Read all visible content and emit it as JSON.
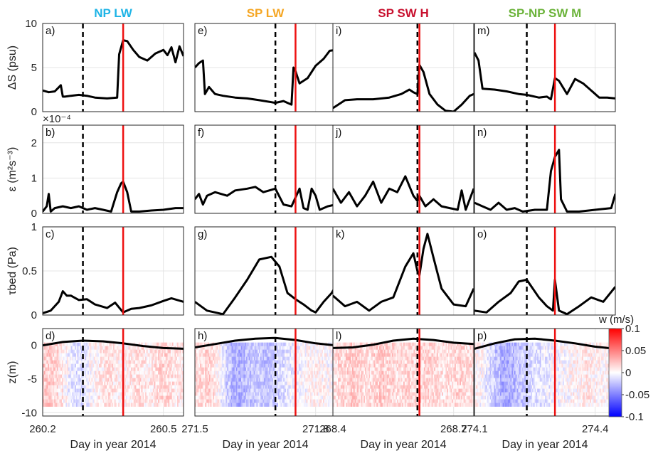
{
  "chart_data": {
    "type": "line",
    "title": "",
    "columns": [
      {
        "title": "NP LW",
        "title_color": "#1EB4E6",
        "x_ticks": [
          "260.2",
          "260.5"
        ],
        "xlim": [
          260.2,
          260.55
        ],
        "x_dashed": 260.3,
        "x_red": 260.4
      },
      {
        "title": "SP LW",
        "title_color": "#F5A623",
        "x_ticks": [
          "271.5",
          "271.8"
        ],
        "xlim": [
          271.5,
          271.85
        ],
        "x_dashed": 271.7,
        "x_red": 271.75
      },
      {
        "title": "SP SW H",
        "title_color": "#C8102E",
        "x_ticks": [
          "268.4",
          "268.7"
        ],
        "xlim": [
          268.4,
          268.75
        ],
        "x_dashed": 268.61,
        "x_red": 268.615
      },
      {
        "title": "SP-NP SW M",
        "title_color": "#6BB33A",
        "x_ticks": [
          "274.1",
          "274.4"
        ],
        "xlim": [
          274.1,
          274.45
        ],
        "x_dashed": 274.23,
        "x_red": 274.3
      }
    ],
    "rows": [
      {
        "ylabel": "ΔS (psu)",
        "ylim": [
          0,
          10
        ],
        "yticks": [
          "0",
          "5",
          "10"
        ],
        "tick_values": [
          0,
          5,
          10
        ],
        "exponent_label": ""
      },
      {
        "ylabel": "ε (m²s⁻³)",
        "ylim": [
          0,
          2.5
        ],
        "yticks": [
          "0",
          "1",
          "2"
        ],
        "tick_values": [
          0,
          1,
          2
        ],
        "exponent_label": "×10⁻⁴"
      },
      {
        "ylabel": "τbed (Pa)",
        "ylim": [
          0,
          1
        ],
        "yticks": [
          "0",
          "0.5",
          "1"
        ],
        "tick_values": [
          0,
          0.5,
          1
        ],
        "exponent_label": ""
      },
      {
        "ylabel": "z(m)",
        "ylim": [
          -10.5,
          2.5
        ],
        "yticks": [
          "0",
          "-5",
          "-10"
        ],
        "tick_values": [
          0,
          -5,
          -10
        ],
        "exponent_label": ""
      }
    ],
    "panel_labels": [
      "a)",
      "b)",
      "c)",
      "d)",
      "e)",
      "f)",
      "g)",
      "h)",
      "i)",
      "j)",
      "k)",
      "l)",
      "m)",
      "n)",
      "o)",
      "p)"
    ],
    "xlabel": "Day in year 2014",
    "colorbar": {
      "label": "w (m/s)",
      "ticks": [
        "0.1",
        "0.05",
        "0",
        "-0.05",
        "-0.1"
      ],
      "tick_values": [
        0.1,
        0.05,
        0,
        -0.05,
        -0.1
      ],
      "range": [
        -0.1,
        0.1
      ]
    },
    "series": {
      "salinity": [
        {
          "x": [
            260.2,
            260.215,
            260.23,
            260.245,
            260.25,
            260.255,
            260.27,
            260.29,
            260.31,
            260.33,
            260.36,
            260.385,
            260.39,
            260.4,
            260.41,
            260.425,
            260.44,
            260.46,
            260.48,
            260.5,
            260.51,
            260.52,
            260.53,
            260.54,
            260.55
          ],
          "y": [
            2.4,
            2.2,
            2.3,
            3.0,
            1.7,
            1.7,
            1.8,
            1.9,
            1.8,
            1.6,
            1.5,
            1.6,
            6.5,
            8.1,
            8.0,
            7.0,
            6.2,
            5.8,
            6.6,
            7.0,
            6.4,
            7.3,
            5.6,
            7.4,
            6.3
          ]
        },
        {
          "x": [
            271.5,
            271.51,
            271.52,
            271.525,
            271.535,
            271.55,
            271.57,
            271.6,
            271.63,
            271.66,
            271.7,
            271.72,
            271.74,
            271.745,
            271.75,
            271.76,
            271.78,
            271.8,
            271.82,
            271.835,
            271.85
          ],
          "y": [
            5.0,
            5.5,
            5.8,
            2.0,
            2.8,
            2.0,
            1.8,
            1.6,
            1.5,
            1.3,
            1.0,
            1.2,
            0.8,
            5.0,
            4.6,
            3.2,
            3.8,
            5.2,
            6.0,
            6.9,
            7.0
          ]
        },
        {
          "x": [
            268.4,
            268.43,
            268.46,
            268.5,
            268.54,
            268.57,
            268.59,
            268.6,
            268.61,
            268.615,
            268.625,
            268.64,
            268.66,
            268.68,
            268.7,
            268.72,
            268.74,
            268.75
          ],
          "y": [
            0.4,
            1.3,
            1.4,
            1.4,
            1.6,
            2.0,
            2.5,
            2.2,
            2.0,
            5.3,
            4.5,
            2.0,
            0.8,
            0.1,
            0.0,
            0.8,
            1.8,
            2.0
          ]
        },
        {
          "x": [
            274.1,
            274.11,
            274.12,
            274.15,
            274.18,
            274.21,
            274.23,
            274.26,
            274.28,
            274.29,
            274.3,
            274.31,
            274.33,
            274.35,
            274.37,
            274.39,
            274.41,
            274.43,
            274.45
          ],
          "y": [
            6.7,
            5.8,
            2.6,
            2.5,
            2.3,
            2.0,
            1.9,
            1.6,
            1.7,
            1.4,
            3.8,
            3.5,
            2.0,
            3.7,
            3.2,
            2.4,
            1.6,
            1.6,
            1.5
          ]
        }
      ],
      "epsilon": [
        {
          "x": [
            260.2,
            260.21,
            260.215,
            260.22,
            260.23,
            260.25,
            260.27,
            260.29,
            260.31,
            260.33,
            260.35,
            260.37,
            260.385,
            260.395,
            260.4,
            260.41,
            260.42,
            260.44,
            260.47,
            260.5,
            260.53,
            260.55
          ],
          "y": [
            0.05,
            0.2,
            0.55,
            0.05,
            0.15,
            0.2,
            0.15,
            0.2,
            0.1,
            0.15,
            0.1,
            0.05,
            0.6,
            0.85,
            0.9,
            0.6,
            0.05,
            0.05,
            0.08,
            0.1,
            0.15,
            0.15
          ]
        },
        {
          "x": [
            271.5,
            271.51,
            271.52,
            271.53,
            271.55,
            271.58,
            271.6,
            271.63,
            271.65,
            271.67,
            271.7,
            271.72,
            271.74,
            271.76,
            271.77,
            271.78,
            271.79,
            271.8,
            271.81,
            271.83,
            271.85
          ],
          "y": [
            0.4,
            0.55,
            0.25,
            0.5,
            0.6,
            0.5,
            0.65,
            0.7,
            0.75,
            0.6,
            0.7,
            0.25,
            0.2,
            0.7,
            0.15,
            0.1,
            0.7,
            0.5,
            0.1,
            0.2,
            0.25
          ]
        },
        {
          "x": [
            268.4,
            268.42,
            268.44,
            268.46,
            268.48,
            268.5,
            268.52,
            268.54,
            268.56,
            268.58,
            268.6,
            268.61,
            268.615,
            268.63,
            268.65,
            268.67,
            268.69,
            268.71,
            268.72,
            268.73,
            268.75
          ],
          "y": [
            0.7,
            0.3,
            0.6,
            0.2,
            0.5,
            0.9,
            0.3,
            0.7,
            0.6,
            1.05,
            0.5,
            0.35,
            0.5,
            0.2,
            0.4,
            0.2,
            0.15,
            0.1,
            0.65,
            0.1,
            0.7
          ]
        },
        {
          "x": [
            274.1,
            274.12,
            274.14,
            274.16,
            274.18,
            274.2,
            274.22,
            274.25,
            274.28,
            274.29,
            274.3,
            274.31,
            274.315,
            274.33,
            274.36,
            274.4,
            274.44,
            274.45
          ],
          "y": [
            0.3,
            0.2,
            0.1,
            0.3,
            0.1,
            0.15,
            0.05,
            0.1,
            0.1,
            1.2,
            1.6,
            1.8,
            0.4,
            0.05,
            0.05,
            0.1,
            0.15,
            0.55
          ]
        }
      ],
      "tau": [
        {
          "x": [
            260.2,
            260.22,
            260.24,
            260.25,
            260.26,
            260.27,
            260.29,
            260.31,
            260.33,
            260.36,
            260.38,
            260.4,
            260.42,
            260.44,
            260.47,
            260.5,
            260.52,
            260.55
          ],
          "y": [
            0.02,
            0.05,
            0.15,
            0.27,
            0.22,
            0.22,
            0.17,
            0.18,
            0.12,
            0.08,
            0.14,
            0.03,
            0.07,
            0.08,
            0.11,
            0.16,
            0.19,
            0.15
          ]
        },
        {
          "x": [
            271.5,
            271.53,
            271.57,
            271.6,
            271.63,
            271.66,
            271.69,
            271.71,
            271.73,
            271.75,
            271.77,
            271.79,
            271.8,
            271.82,
            271.84,
            271.85
          ],
          "y": [
            0.15,
            0.05,
            0.01,
            0.2,
            0.4,
            0.63,
            0.66,
            0.55,
            0.25,
            0.18,
            0.12,
            0.05,
            0.03,
            0.15,
            0.25,
            0.33
          ]
        },
        {
          "x": [
            268.4,
            268.43,
            268.46,
            268.49,
            268.52,
            268.55,
            268.58,
            268.6,
            268.61,
            268.615,
            268.625,
            268.635,
            268.65,
            268.67,
            268.7,
            268.73,
            268.75
          ],
          "y": [
            0.22,
            0.1,
            0.15,
            0.05,
            0.15,
            0.2,
            0.55,
            0.7,
            0.5,
            0.45,
            0.75,
            0.92,
            0.65,
            0.3,
            0.12,
            0.1,
            0.3
          ]
        },
        {
          "x": [
            274.1,
            274.13,
            274.16,
            274.19,
            274.21,
            274.23,
            274.26,
            274.28,
            274.295,
            274.3,
            274.31,
            274.33,
            274.36,
            274.39,
            274.42,
            274.45
          ],
          "y": [
            0.05,
            0.03,
            0.15,
            0.25,
            0.38,
            0.4,
            0.2,
            0.1,
            0.05,
            0.4,
            0.05,
            0.01,
            0.1,
            0.2,
            0.15,
            0.32
          ]
        }
      ],
      "surface": [
        {
          "x": [
            260.2,
            260.25,
            260.3,
            260.35,
            260.4,
            260.45,
            260.5,
            260.55
          ],
          "y": [
            0.0,
            0.5,
            0.7,
            0.6,
            0.3,
            -0.1,
            -0.4,
            -0.5
          ]
        },
        {
          "x": [
            271.5,
            271.55,
            271.6,
            271.65,
            271.7,
            271.75,
            271.8,
            271.85
          ],
          "y": [
            -0.3,
            0.2,
            0.7,
            1.0,
            1.1,
            0.8,
            0.3,
            0.0
          ]
        },
        {
          "x": [
            268.4,
            268.45,
            268.5,
            268.55,
            268.6,
            268.65,
            268.7,
            268.75
          ],
          "y": [
            -0.4,
            -0.3,
            0.1,
            0.7,
            1.0,
            0.8,
            0.4,
            0.2
          ]
        },
        {
          "x": [
            274.1,
            274.15,
            274.2,
            274.25,
            274.3,
            274.35,
            274.4,
            274.45
          ],
          "y": [
            -0.5,
            0.3,
            0.9,
            1.0,
            0.7,
            0.3,
            -0.2,
            -0.5
          ]
        }
      ]
    },
    "heatmap_bias": [
      [
        0.5,
        0.5,
        0.4,
        0.2,
        0.0,
        -0.2,
        -0.3,
        -0.3,
        -0.2,
        0.0,
        0.1,
        0.2,
        0.3,
        0.3,
        0.2,
        0.1,
        0.1,
        0.2,
        0.3,
        0.3,
        0.2,
        0.2,
        0.3,
        0.4,
        0.4,
        0.3,
        0.2,
        0.2
      ],
      [
        0.3,
        0.4,
        0.4,
        0.3,
        0.1,
        -0.2,
        -0.5,
        -0.7,
        -0.8,
        -0.7,
        -0.6,
        -0.5,
        -0.5,
        -0.6,
        -0.6,
        -0.5,
        -0.4,
        -0.3,
        -0.2,
        -0.2,
        -0.1,
        0.0,
        0.1,
        0.1,
        0.1,
        0.1,
        0.0,
        0.0
      ],
      [
        0.3,
        0.4,
        0.4,
        0.5,
        0.5,
        0.4,
        0.3,
        0.3,
        0.4,
        0.5,
        0.4,
        0.4,
        0.3,
        0.3,
        0.4,
        0.4,
        0.3,
        0.3,
        0.4,
        0.4,
        0.4,
        0.3,
        0.3,
        0.3,
        0.4,
        0.4,
        0.3,
        0.3
      ],
      [
        0.1,
        0.0,
        -0.2,
        -0.4,
        -0.6,
        -0.8,
        -0.8,
        -0.7,
        -0.6,
        -0.5,
        -0.4,
        -0.3,
        -0.3,
        -0.2,
        -0.2,
        -0.1,
        -0.1,
        0.0,
        0.0,
        0.1,
        0.1,
        0.2,
        0.2,
        0.1,
        0.1,
        0.1,
        0.1,
        0.0
      ]
    ],
    "line_colors": {
      "series": "#000000",
      "dashed": "#000000",
      "red": "#EE1111",
      "grid": "#E4E4E4"
    }
  }
}
